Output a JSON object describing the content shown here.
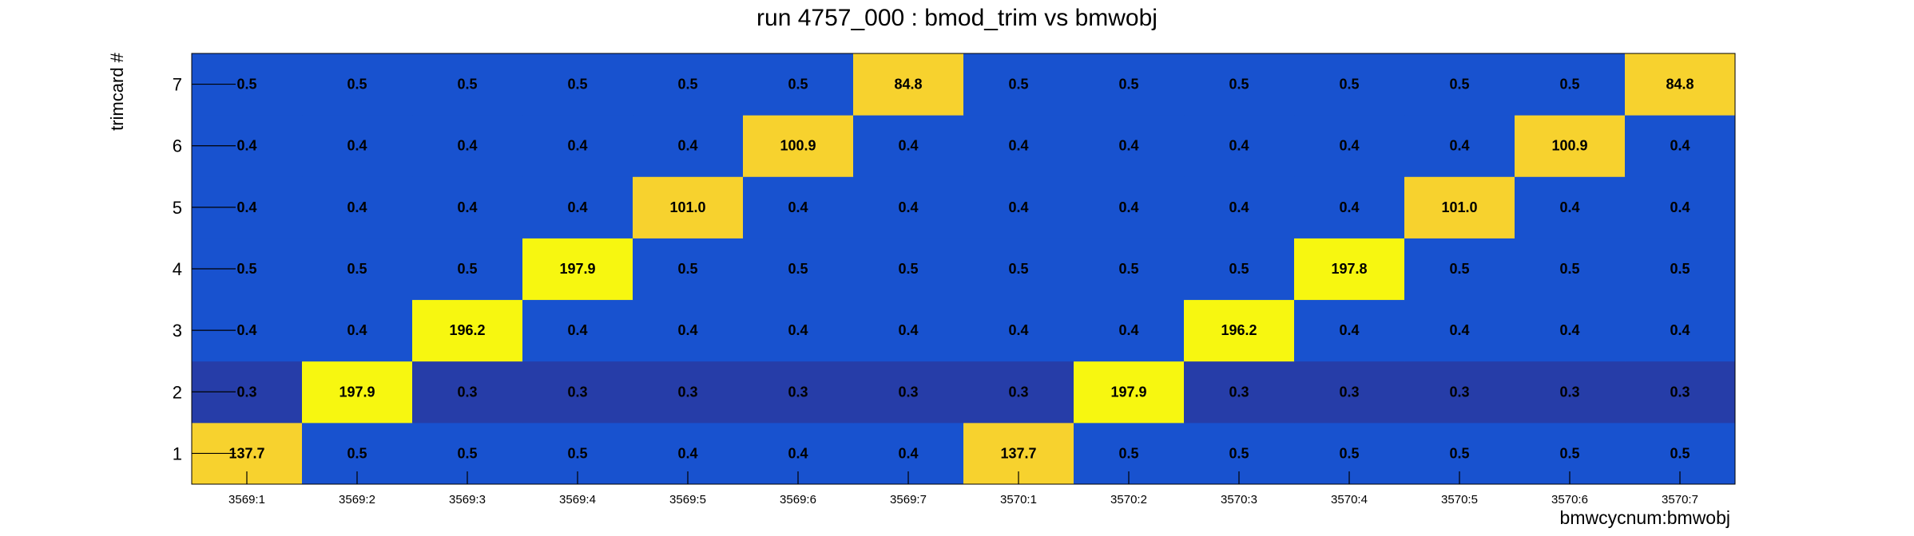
{
  "chart_data": {
    "type": "heatmap",
    "title": "run 4757_000 : bmod_trim vs bmwobj",
    "xlabel": "bmwcycnum:bmwobj",
    "ylabel": "trimcard #",
    "x_categories": [
      "3569:1",
      "3569:2",
      "3569:3",
      "3569:4",
      "3569:5",
      "3569:6",
      "3569:7",
      "3570:1",
      "3570:2",
      "3570:3",
      "3570:4",
      "3570:5",
      "3570:6",
      "3570:7"
    ],
    "y_categories": [
      "1",
      "2",
      "3",
      "4",
      "5",
      "6",
      "7"
    ],
    "values": [
      [
        "137.7",
        "0.5",
        "0.5",
        "0.5",
        "0.4",
        "0.4",
        "0.4",
        "137.7",
        "0.5",
        "0.5",
        "0.5",
        "0.5",
        "0.5",
        "0.5"
      ],
      [
        "0.3",
        "197.9",
        "0.3",
        "0.3",
        "0.3",
        "0.3",
        "0.3",
        "0.3",
        "197.9",
        "0.3",
        "0.3",
        "0.3",
        "0.3",
        "0.3"
      ],
      [
        "0.4",
        "0.4",
        "196.2",
        "0.4",
        "0.4",
        "0.4",
        "0.4",
        "0.4",
        "0.4",
        "196.2",
        "0.4",
        "0.4",
        "0.4",
        "0.4"
      ],
      [
        "0.5",
        "0.5",
        "0.5",
        "197.9",
        "0.5",
        "0.5",
        "0.5",
        "0.5",
        "0.5",
        "0.5",
        "197.8",
        "0.5",
        "0.5",
        "0.5"
      ],
      [
        "0.4",
        "0.4",
        "0.4",
        "0.4",
        "101.0",
        "0.4",
        "0.4",
        "0.4",
        "0.4",
        "0.4",
        "0.4",
        "101.0",
        "0.4",
        "0.4"
      ],
      [
        "0.4",
        "0.4",
        "0.4",
        "0.4",
        "0.4",
        "100.9",
        "0.4",
        "0.4",
        "0.4",
        "0.4",
        "0.4",
        "0.4",
        "100.9",
        "0.4"
      ],
      [
        "0.5",
        "0.5",
        "0.5",
        "0.5",
        "0.5",
        "0.5",
        "84.8",
        "0.5",
        "0.5",
        "0.5",
        "0.5",
        "0.5",
        "0.5",
        "84.8"
      ]
    ],
    "colors": {
      "low_row_2": "#263da8",
      "low_default": "#1852cf",
      "high_max": "#f7f710",
      "high_mid": "#f7d22e",
      "text": "#000000"
    }
  }
}
